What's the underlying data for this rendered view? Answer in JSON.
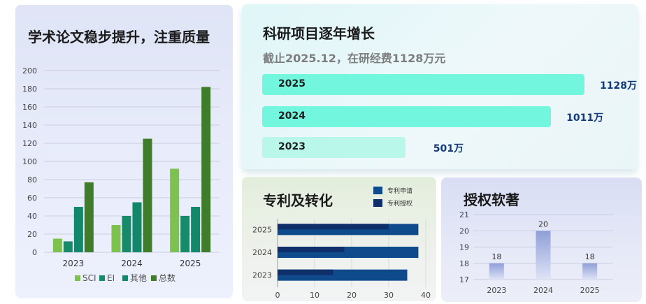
{
  "papers": {
    "title": "学术论文稳步提升，注重质量",
    "chart_data": {
      "type": "bar",
      "categories": [
        "2023",
        "2024",
        "2025"
      ],
      "ylim": [
        0,
        200
      ],
      "yticks": [
        0,
        20,
        40,
        60,
        80,
        100,
        120,
        140,
        160,
        180,
        200
      ],
      "series": [
        {
          "name": "SCI",
          "color": "#7dc24e",
          "values": [
            15,
            30,
            92
          ]
        },
        {
          "name": "EI",
          "color": "#178a6a",
          "values": [
            12,
            40,
            40
          ]
        },
        {
          "name": "其他",
          "color": "#12876a",
          "values": [
            50,
            55,
            50
          ]
        },
        {
          "name": "总数",
          "color": "#3f7d2b",
          "values": [
            77,
            125,
            182
          ]
        }
      ],
      "legend": "bottom"
    }
  },
  "funding": {
    "title": "科研项目逐年增长",
    "subtitle": "截止2025.12，在研经费1128万元",
    "chart_data": {
      "type": "bar",
      "orientation": "horizontal",
      "categories": [
        "2025",
        "2024",
        "2023"
      ],
      "values": [
        1128,
        1011,
        501
      ],
      "value_labels": [
        "1128万",
        "1011万",
        "501万"
      ],
      "colors": [
        "#72f7de",
        "#72f7de",
        "#b8f7ea"
      ]
    }
  },
  "patents": {
    "title": "专利及转化",
    "chart_data": {
      "type": "bar",
      "orientation": "horizontal",
      "categories": [
        "2025",
        "2024",
        "2023"
      ],
      "xlim": [
        0,
        40
      ],
      "xticks": [
        0,
        10,
        20,
        30,
        40
      ],
      "series": [
        {
          "name": "专利申请",
          "color": "#0e4a8c",
          "values": [
            38,
            38,
            35
          ]
        },
        {
          "name": "专利授权",
          "color": "#0f2f6b",
          "values": [
            30,
            18,
            15
          ]
        }
      ],
      "legend": "top-right"
    }
  },
  "software": {
    "title": "授权软著",
    "chart_data": {
      "type": "bar",
      "categories": [
        "2023",
        "2024",
        "2025"
      ],
      "values": [
        18,
        20,
        18
      ],
      "ylim": [
        17,
        21
      ],
      "yticks": [
        17,
        18,
        19,
        20,
        21
      ],
      "color_top": "#8f9fd8",
      "color_bottom": "#dfe3f6"
    }
  }
}
